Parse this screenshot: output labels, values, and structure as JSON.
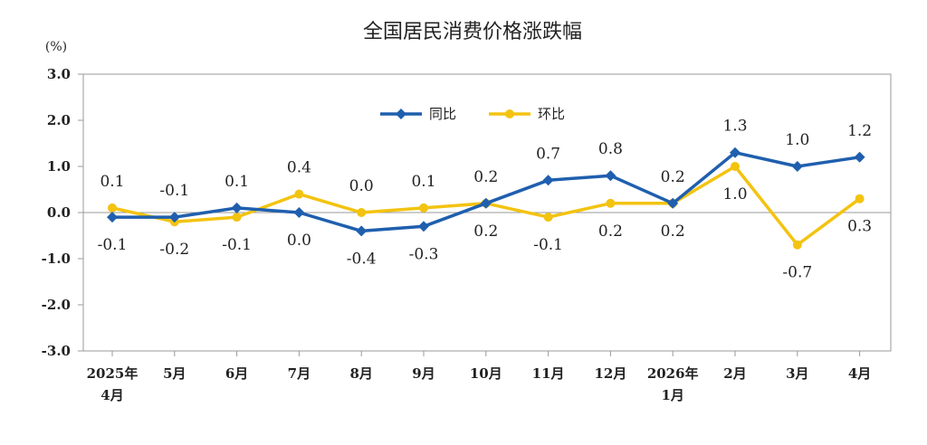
{
  "chart_data": {
    "type": "line",
    "title": "全国居民消费价格涨跌幅",
    "ylabel": "(%)",
    "xlabel": "",
    "ylim": [
      -3.0,
      3.0
    ],
    "yticks": [
      "3.0",
      "2.0",
      "1.0",
      "0.0",
      "-1.0",
      "-2.0",
      "-3.0"
    ],
    "ytick_values": [
      3,
      2,
      1,
      0,
      -1,
      -2,
      -3
    ],
    "categories": [
      [
        "2025年",
        "4月"
      ],
      [
        "5月"
      ],
      [
        "6月"
      ],
      [
        "7月"
      ],
      [
        "8月"
      ],
      [
        "9月"
      ],
      [
        "10月"
      ],
      [
        "11月"
      ],
      [
        "12月"
      ],
      [
        "2026年",
        "1月"
      ],
      [
        "2月"
      ],
      [
        "3月"
      ],
      [
        "4月"
      ]
    ],
    "series": [
      {
        "name": "同比",
        "color": "#1f5fae",
        "marker": "diamond",
        "values": [
          -0.1,
          -0.1,
          0.1,
          0.0,
          -0.4,
          -0.3,
          0.2,
          0.7,
          0.8,
          0.2,
          1.3,
          1.0,
          1.2
        ],
        "labels": [
          "-0.1",
          "-0.1",
          "0.1",
          "0.0",
          "-0.4",
          "-0.3",
          "0.2",
          "0.7",
          "0.8",
          "0.2",
          "1.3",
          "1.0",
          "1.2"
        ],
        "label_pos": [
          "below",
          "above",
          "above",
          "below",
          "below",
          "below",
          "above",
          "above",
          "above",
          "above",
          "above",
          "above",
          "above"
        ]
      },
      {
        "name": "环比",
        "color": "#f3c310",
        "marker": "circle",
        "values": [
          0.1,
          -0.2,
          -0.1,
          0.4,
          0.0,
          0.1,
          0.2,
          -0.1,
          0.2,
          0.2,
          1.0,
          -0.7,
          0.3
        ],
        "labels": [
          "0.1",
          "-0.2",
          "-0.1",
          "0.4",
          "0.0",
          "0.1",
          "0.2",
          "-0.1",
          "0.2",
          "0.2",
          "1.0",
          "-0.7",
          "0.3"
        ],
        "label_pos": [
          "above",
          "below",
          "below",
          "above",
          "above",
          "above",
          "below",
          "below",
          "below",
          "below",
          "below",
          "below",
          "below"
        ]
      }
    ],
    "grid": false,
    "legend": "top-center"
  }
}
